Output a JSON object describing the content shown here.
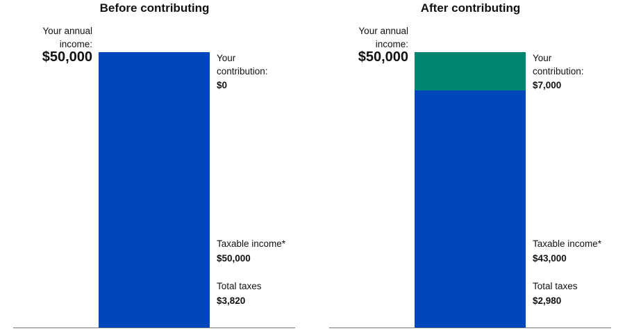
{
  "chart_data": [
    {
      "type": "bar",
      "stacked": true,
      "title": "Before contributing",
      "income_label": "Your annual income:",
      "income_value": "$50,000",
      "contribution_label": "Your contribution:",
      "contribution_value": "$0",
      "taxable_label": "Taxable income*",
      "taxable_value": "$50,000",
      "taxes_label": "Total taxes",
      "taxes_value": "$3,820",
      "segments": [
        {
          "label": "Taxable income",
          "value": 50000,
          "color": "#0047BB"
        },
        {
          "label": "Contribution",
          "value": 0,
          "color": "#008570"
        }
      ],
      "ylim": [
        0,
        50000
      ]
    },
    {
      "type": "bar",
      "stacked": true,
      "title": "After contributing",
      "income_label": "Your annual income:",
      "income_value": "$50,000",
      "contribution_label": "Your contribution:",
      "contribution_value": "$7,000",
      "taxable_label": "Taxable income*",
      "taxable_value": "$43,000",
      "taxes_label": "Total taxes",
      "taxes_value": "$2,980",
      "segments": [
        {
          "label": "Taxable income",
          "value": 43000,
          "color": "#0047BB"
        },
        {
          "label": "Contribution",
          "value": 7000,
          "color": "#008570"
        }
      ],
      "ylim": [
        0,
        50000
      ]
    }
  ]
}
